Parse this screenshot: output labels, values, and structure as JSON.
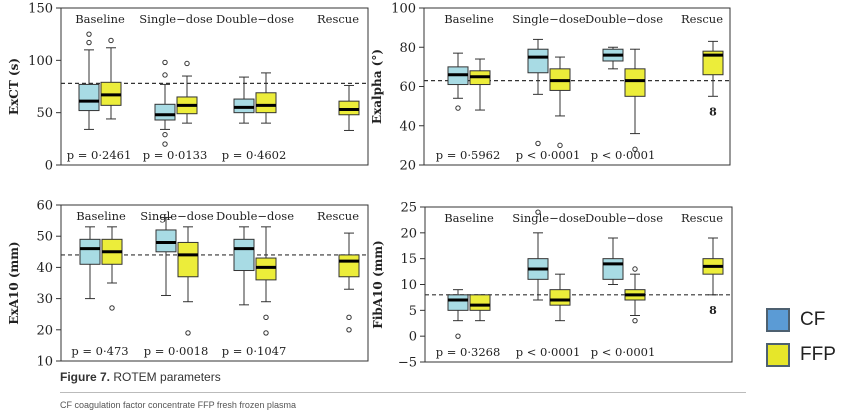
{
  "caption": {
    "label": "Figure 7.",
    "text": " ROTEM parameters"
  },
  "footnote": "CF coagulation factor concentrate FFP fresh frozen plasma",
  "legend": [
    {
      "name": "CF",
      "color": "#5b9bd5"
    },
    {
      "name": "FFP",
      "color": "#e6e62a"
    }
  ],
  "colors": {
    "cf_box": "#a8dbe4",
    "ffp_box": "#eced3a",
    "reference_line": "#333333"
  },
  "chart_data": [
    {
      "type": "box",
      "ylabel": "ExCT (s)",
      "ylim": [
        0,
        150
      ],
      "yticks": [
        0,
        50,
        100,
        150
      ],
      "reference_line": 78,
      "groups": [
        "Baseline",
        "Single−dose",
        "Double−dose",
        "Rescue"
      ],
      "pvalues": [
        "p = 0·2461",
        "p = 0·0133",
        "p = 0·4602",
        ""
      ],
      "series": [
        {
          "name": "CF",
          "boxes": [
            {
              "group": "Baseline",
              "min": 34,
              "q1": 52,
              "median": 61,
              "q3": 77,
              "max": 110,
              "outliers": [
                117,
                125
              ]
            },
            {
              "group": "Single−dose",
              "min": 34,
              "q1": 43,
              "median": 48,
              "q3": 58,
              "max": 77,
              "outliers": [
                20,
                29,
                86,
                98
              ]
            },
            {
              "group": "Double−dose",
              "min": 40,
              "q1": 50,
              "median": 55,
              "q3": 63,
              "max": 84,
              "outliers": []
            }
          ]
        },
        {
          "name": "FFP",
          "boxes": [
            {
              "group": "Baseline",
              "min": 44,
              "q1": 57,
              "median": 67,
              "q3": 79,
              "max": 112,
              "outliers": [
                119
              ]
            },
            {
              "group": "Single−dose",
              "min": 40,
              "q1": 49,
              "median": 57,
              "q3": 65,
              "max": 85,
              "outliers": [
                97
              ]
            },
            {
              "group": "Double−dose",
              "min": 40,
              "q1": 50,
              "median": 57,
              "q3": 69,
              "max": 88,
              "outliers": []
            },
            {
              "group": "Rescue",
              "min": 33,
              "q1": 48,
              "median": 53,
              "q3": 61,
              "max": 76,
              "outliers": []
            }
          ]
        }
      ]
    },
    {
      "type": "box",
      "ylabel": "Exalpha (°)",
      "ylim": [
        20,
        100
      ],
      "yticks": [
        20,
        40,
        60,
        80,
        100
      ],
      "reference_line": 63,
      "groups": [
        "Baseline",
        "Single−dose",
        "Double−dose",
        "Rescue"
      ],
      "pvalues": [
        "p = 0·5962",
        "p < 0·0001",
        "p < 0·0001",
        ""
      ],
      "rescue_note": "8",
      "series": [
        {
          "name": "CF",
          "boxes": [
            {
              "group": "Baseline",
              "min": 54,
              "q1": 61,
              "median": 66,
              "q3": 70,
              "max": 77,
              "outliers": [
                49
              ]
            },
            {
              "group": "Single−dose",
              "min": 56,
              "q1": 67,
              "median": 75,
              "q3": 79,
              "max": 84,
              "outliers": [
                31
              ]
            },
            {
              "group": "Double−dose",
              "min": 69,
              "q1": 73,
              "median": 76,
              "q3": 79,
              "max": 80,
              "outliers": []
            }
          ]
        },
        {
          "name": "FFP",
          "boxes": [
            {
              "group": "Baseline",
              "min": 48,
              "q1": 61,
              "median": 65,
              "q3": 68,
              "max": 74,
              "outliers": []
            },
            {
              "group": "Single−dose",
              "min": 45,
              "q1": 58,
              "median": 63,
              "q3": 69,
              "max": 75,
              "outliers": [
                30
              ]
            },
            {
              "group": "Double−dose",
              "min": 36,
              "q1": 55,
              "median": 63,
              "q3": 69,
              "max": 79,
              "outliers": [
                28
              ]
            },
            {
              "group": "Rescue",
              "min": 55,
              "q1": 66,
              "median": 76,
              "q3": 78,
              "max": 83,
              "outliers": []
            }
          ]
        }
      ]
    },
    {
      "type": "box",
      "ylabel": "ExA10 (mm)",
      "ylim": [
        10,
        60
      ],
      "yticks": [
        10,
        20,
        30,
        40,
        50,
        60
      ],
      "reference_line": 44,
      "groups": [
        "Baseline",
        "Single−dose",
        "Double−dose",
        "Rescue"
      ],
      "pvalues": [
        "p = 0·473",
        "p = 0·0018",
        "p = 0·1047",
        ""
      ],
      "series": [
        {
          "name": "CF",
          "boxes": [
            {
              "group": "Baseline",
              "min": 30,
              "q1": 41,
              "median": 46,
              "q3": 49,
              "max": 53,
              "outliers": []
            },
            {
              "group": "Single−dose",
              "min": 31,
              "q1": 45,
              "median": 48,
              "q3": 52,
              "max": 56,
              "outliers": []
            },
            {
              "group": "Double−dose",
              "min": 28,
              "q1": 39,
              "median": 46,
              "q3": 49,
              "max": 53,
              "outliers": []
            }
          ]
        },
        {
          "name": "FFP",
          "boxes": [
            {
              "group": "Baseline",
              "min": 35,
              "q1": 41,
              "median": 45,
              "q3": 49,
              "max": 53,
              "outliers": [
                27
              ]
            },
            {
              "group": "Single−dose",
              "min": 29,
              "q1": 37,
              "median": 44,
              "q3": 48,
              "max": 53,
              "outliers": [
                19
              ]
            },
            {
              "group": "Double−dose",
              "min": 29,
              "q1": 36,
              "median": 40,
              "q3": 43,
              "max": 53,
              "outliers": [
                19,
                24
              ]
            },
            {
              "group": "Rescue",
              "min": 33,
              "q1": 37,
              "median": 42,
              "q3": 44,
              "max": 51,
              "outliers": [
                20,
                24
              ]
            }
          ]
        }
      ]
    },
    {
      "type": "box",
      "ylabel": "FibA10 (mm)",
      "ylim": [
        -5,
        25
      ],
      "yticks": [
        -5,
        0,
        5,
        10,
        15,
        20,
        25
      ],
      "reference_line": 8,
      "groups": [
        "Baseline",
        "Single−dose",
        "Double−dose",
        "Rescue"
      ],
      "pvalues": [
        "p = 0·3268",
        "p < 0·0001",
        "p < 0·0001",
        ""
      ],
      "rescue_note": "8",
      "series": [
        {
          "name": "CF",
          "boxes": [
            {
              "group": "Baseline",
              "min": 3,
              "q1": 5,
              "median": 7,
              "q3": 8,
              "max": 9,
              "outliers": [
                0
              ]
            },
            {
              "group": "Single−dose",
              "min": 7,
              "q1": 11,
              "median": 13,
              "q3": 15,
              "max": 20,
              "outliers": [
                24
              ]
            },
            {
              "group": "Double−dose",
              "min": 10,
              "q1": 11,
              "median": 14,
              "q3": 15,
              "max": 19,
              "outliers": []
            }
          ]
        },
        {
          "name": "FFP",
          "boxes": [
            {
              "group": "Baseline",
              "min": 3,
              "q1": 5,
              "median": 6,
              "q3": 8,
              "max": 8,
              "outliers": []
            },
            {
              "group": "Single−dose",
              "min": 3,
              "q1": 6,
              "median": 7,
              "q3": 9,
              "max": 12,
              "outliers": []
            },
            {
              "group": "Double−dose",
              "min": 4,
              "q1": 7,
              "median": 8,
              "q3": 9,
              "max": 12,
              "outliers": [
                3,
                13
              ]
            },
            {
              "group": "Rescue",
              "min": 8,
              "q1": 12,
              "median": 13.5,
              "q3": 15,
              "max": 19,
              "outliers": []
            }
          ]
        }
      ]
    }
  ]
}
